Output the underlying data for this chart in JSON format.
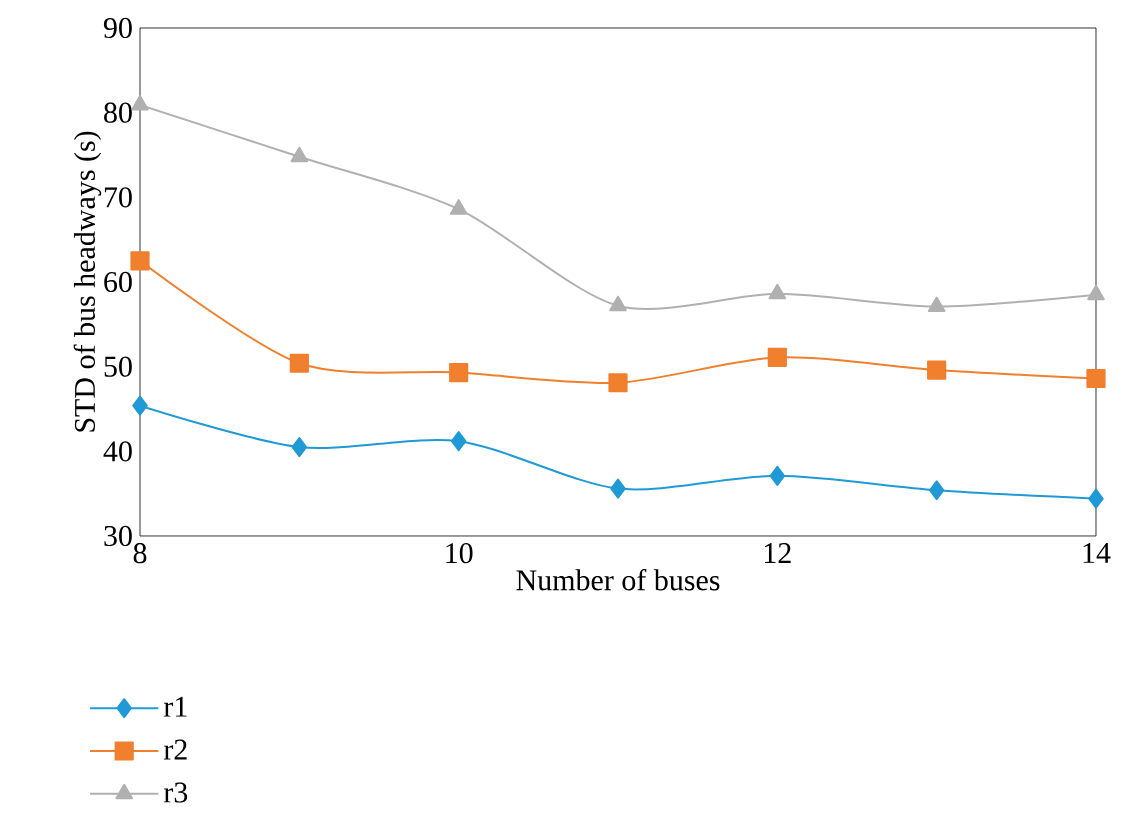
{
  "chart_data": {
    "type": "line",
    "xlabel": "Number of buses",
    "ylabel": "STD of bus headways (s)",
    "x": [
      8,
      9,
      10,
      11,
      12,
      13,
      14
    ],
    "series": [
      {
        "name": "r1",
        "color": "#1f9ad6",
        "marker": "diamond",
        "values": [
          45.4,
          40.5,
          41.2,
          35.6,
          37.1,
          35.4,
          34.4
        ]
      },
      {
        "name": "r2",
        "color": "#f07f2e",
        "marker": "square",
        "values": [
          62.5,
          50.4,
          49.3,
          48.1,
          51.1,
          49.6,
          48.6
        ]
      },
      {
        "name": "r3",
        "color": "#b0b0b0",
        "marker": "triangle",
        "values": [
          80.9,
          74.8,
          68.6,
          57.2,
          58.6,
          57.1,
          58.5
        ]
      }
    ],
    "xlim": [
      8,
      14
    ],
    "xticks": [
      8,
      10,
      12,
      14
    ],
    "ylim": [
      30,
      90
    ],
    "yticks": [
      30,
      40,
      50,
      60,
      70,
      80,
      90
    ],
    "grid": false,
    "legend": "bottom left",
    "line_style": "solid"
  }
}
